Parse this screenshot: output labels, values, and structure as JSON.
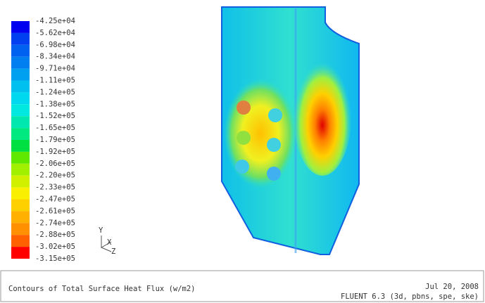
{
  "legend": {
    "labels": [
      "-4.25e+04",
      "-5.62e+04",
      "-6.98e+04",
      "-8.34e+04",
      "-9.71e+04",
      "-1.11e+05",
      "-1.24e+05",
      "-1.38e+05",
      "-1.52e+05",
      "-1.65e+05",
      "-1.79e+05",
      "-1.92e+05",
      "-2.06e+05",
      "-2.20e+05",
      "-2.33e+05",
      "-2.47e+05",
      "-2.61e+05",
      "-2.74e+05",
      "-2.88e+05",
      "-3.02e+05",
      "-3.15e+05"
    ]
  },
  "axes": {
    "labels": [
      "Y",
      "X",
      "Z"
    ]
  },
  "caption": {
    "title": "Contours of Total Surface Heat Flux (w/m2)",
    "date": "Jul 20, 2008",
    "software": "FLUENT 6.3 (3d, pbns, spe, ske)"
  }
}
